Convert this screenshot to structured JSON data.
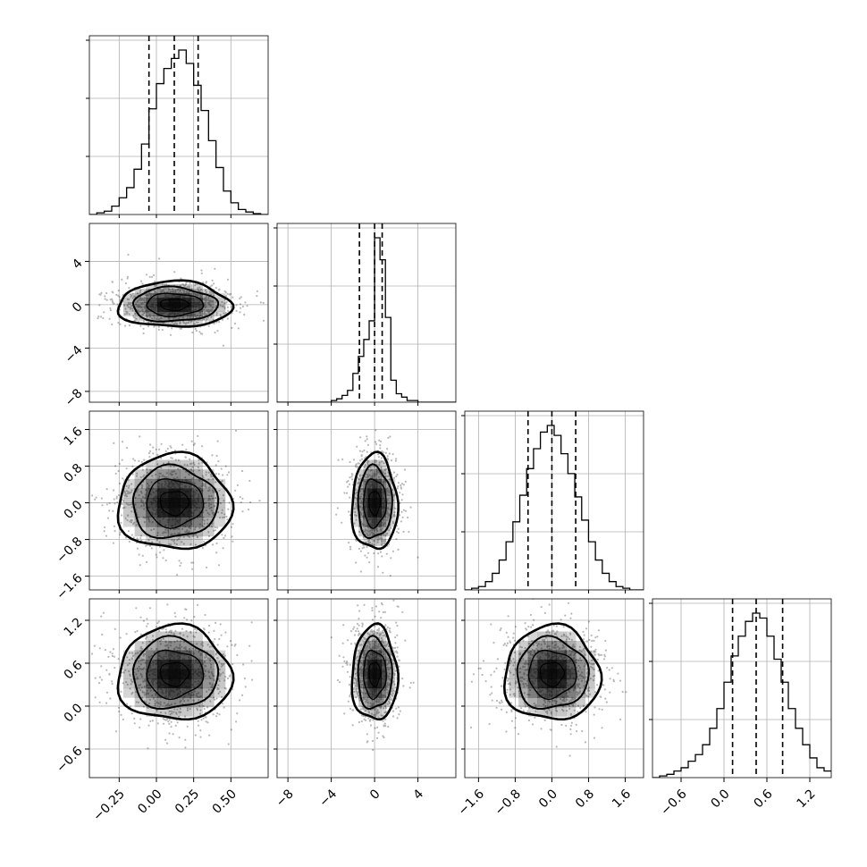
{
  "chart_data": {
    "type": "corner",
    "title": "",
    "n_params": 4,
    "grid": true,
    "params": [
      {
        "index": 0,
        "range": [
          -0.45,
          0.75
        ],
        "ticks": [
          -0.25,
          0.0,
          0.25,
          0.5
        ],
        "tick_labels": [
          "−0.25",
          "0.00",
          "0.25",
          "0.50"
        ],
        "quantiles": [
          -0.05,
          0.12,
          0.28
        ],
        "histogram": {
          "bin_edges": [
            -0.45,
            -0.4,
            -0.35,
            -0.3,
            -0.25,
            -0.2,
            -0.15,
            -0.1,
            -0.05,
            0.0,
            0.05,
            0.1,
            0.15,
            0.2,
            0.25,
            0.3,
            0.35,
            0.4,
            0.45,
            0.5,
            0.55,
            0.6,
            0.65,
            0.7,
            0.75
          ],
          "counts": [
            0.0,
            0.01,
            0.02,
            0.05,
            0.1,
            0.16,
            0.27,
            0.42,
            0.63,
            0.78,
            0.87,
            0.93,
            0.98,
            0.9,
            0.77,
            0.62,
            0.44,
            0.28,
            0.14,
            0.07,
            0.03,
            0.015,
            0.005,
            0.0
          ]
        }
      },
      {
        "index": 1,
        "range": [
          -9.0,
          7.5
        ],
        "ticks": [
          -8,
          -4,
          0,
          4
        ],
        "tick_labels": [
          "−8",
          "−4",
          "0",
          "4"
        ],
        "quantiles": [
          -1.4,
          0.0,
          0.7
        ],
        "histogram": {
          "bin_edges": [
            -9.0,
            -8.5,
            -8.0,
            -7.5,
            -7.0,
            -6.5,
            -6.0,
            -5.5,
            -5.0,
            -4.5,
            -4.0,
            -3.5,
            -3.0,
            -2.5,
            -2.0,
            -1.5,
            -1.0,
            -0.5,
            0.0,
            0.5,
            1.0,
            1.5,
            2.0,
            2.5,
            3.0,
            3.5,
            4.0,
            4.5,
            5.0,
            5.5,
            6.0,
            6.5,
            7.0,
            7.5
          ],
          "counts": [
            0,
            0,
            0,
            0,
            0,
            0,
            0,
            0,
            0,
            0,
            0.01,
            0.02,
            0.04,
            0.07,
            0.17,
            0.27,
            0.37,
            0.48,
            0.97,
            0.84,
            0.5,
            0.13,
            0.05,
            0.03,
            0.01,
            0.01,
            0.0,
            0,
            0,
            0,
            0,
            0,
            0
          ]
        }
      },
      {
        "index": 2,
        "range": [
          -1.9,
          2.0
        ],
        "ticks": [
          -1.6,
          -0.8,
          0.0,
          0.8,
          1.6
        ],
        "tick_labels": [
          "−1.6",
          "−0.8",
          "0.0",
          "0.8",
          "1.6"
        ],
        "quantiles": [
          -0.52,
          0.0,
          0.52
        ],
        "histogram": {
          "bin_edges": [
            -1.9,
            -1.75,
            -1.6,
            -1.45,
            -1.3,
            -1.15,
            -1.0,
            -0.85,
            -0.7,
            -0.55,
            -0.4,
            -0.25,
            -0.1,
            0.05,
            0.2,
            0.35,
            0.5,
            0.65,
            0.8,
            0.95,
            1.1,
            1.25,
            1.4,
            1.55,
            1.7,
            1.85,
            2.0
          ],
          "counts": [
            0.0,
            0.01,
            0.02,
            0.05,
            0.1,
            0.18,
            0.29,
            0.41,
            0.57,
            0.73,
            0.85,
            0.95,
            0.99,
            0.93,
            0.82,
            0.7,
            0.56,
            0.42,
            0.29,
            0.18,
            0.1,
            0.05,
            0.02,
            0.01,
            0.0,
            0.0
          ]
        }
      },
      {
        "index": 3,
        "range": [
          -1.0,
          1.5
        ],
        "ticks": [
          -0.6,
          0.0,
          0.6,
          1.2
        ],
        "tick_labels": [
          "−0.6",
          "0.0",
          "0.6",
          "1.2"
        ],
        "quantiles": [
          0.12,
          0.45,
          0.82
        ],
        "histogram": {
          "bin_edges": [
            -1.0,
            -0.9,
            -0.8,
            -0.7,
            -0.6,
            -0.5,
            -0.4,
            -0.3,
            -0.2,
            -0.1,
            0.0,
            0.1,
            0.2,
            0.3,
            0.4,
            0.5,
            0.6,
            0.7,
            0.8,
            0.9,
            1.0,
            1.1,
            1.2,
            1.3,
            1.4,
            1.5
          ],
          "counts": [
            0.0,
            0.01,
            0.02,
            0.04,
            0.06,
            0.1,
            0.14,
            0.2,
            0.3,
            0.42,
            0.58,
            0.74,
            0.86,
            0.95,
            1.0,
            0.97,
            0.86,
            0.72,
            0.58,
            0.42,
            0.3,
            0.2,
            0.12,
            0.06,
            0.04
          ]
        }
      }
    ],
    "pairs": [
      {
        "x_param": 0,
        "y_param": 1,
        "center": [
          0.12,
          0.0
        ],
        "sd": [
          0.19,
          1.05
        ]
      },
      {
        "x_param": 0,
        "y_param": 2,
        "center": [
          0.12,
          0.0
        ],
        "sd": [
          0.19,
          0.52
        ]
      },
      {
        "x_param": 1,
        "y_param": 2,
        "center": [
          0.0,
          0.0
        ],
        "sd": [
          1.05,
          0.52
        ]
      },
      {
        "x_param": 0,
        "y_param": 3,
        "center": [
          0.12,
          0.45
        ],
        "sd": [
          0.19,
          0.33
        ]
      },
      {
        "x_param": 1,
        "y_param": 3,
        "center": [
          0.0,
          0.45
        ],
        "sd": [
          1.05,
          0.33
        ]
      },
      {
        "x_param": 2,
        "y_param": 3,
        "center": [
          0.0,
          0.45
        ],
        "sd": [
          0.52,
          0.33
        ]
      }
    ]
  }
}
